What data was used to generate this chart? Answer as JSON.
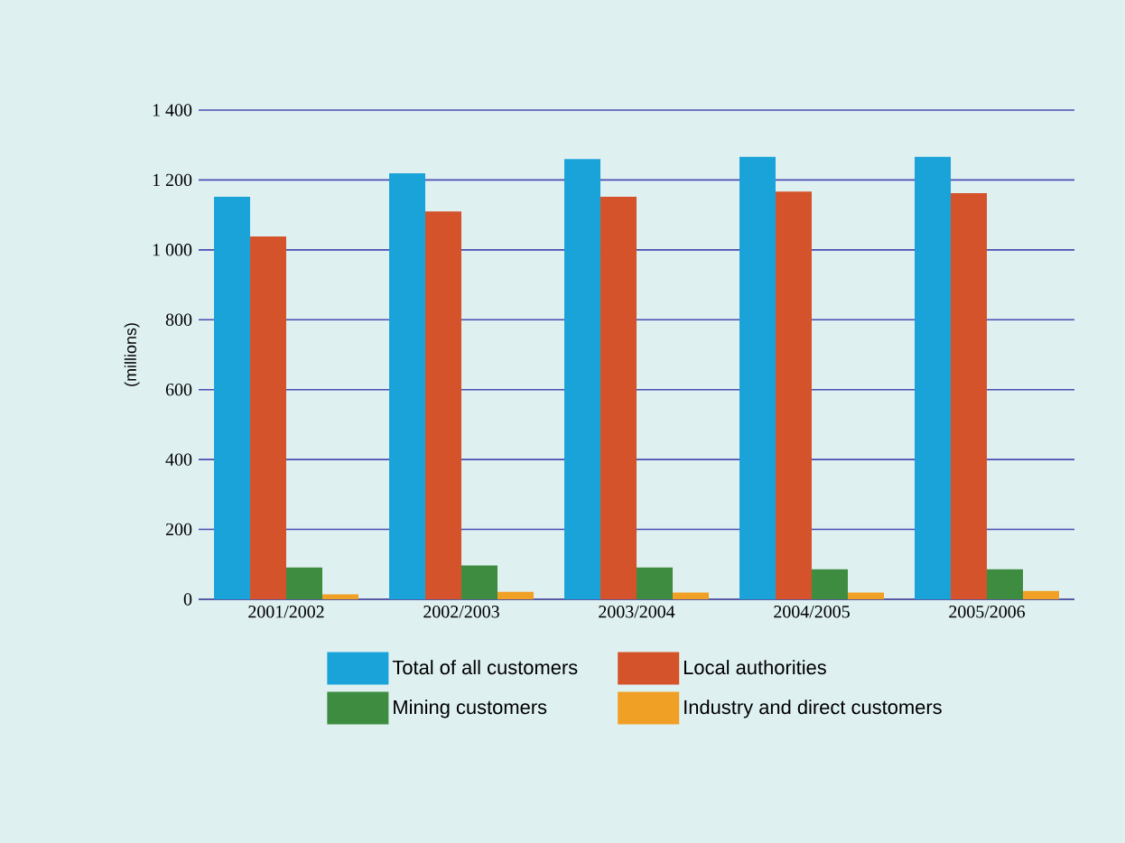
{
  "chart_data": {
    "type": "bar",
    "ylabel": "(millions)",
    "categories": [
      "2001/2002",
      "2002/2003",
      "2003/2004",
      "2004/2005",
      "2005/2006"
    ],
    "series": [
      {
        "name": "Total of all customers",
        "color": "#1aa3d9",
        "values": [
          1152,
          1219,
          1260,
          1266,
          1266
        ]
      },
      {
        "name": "Local authorities",
        "color": "#d4532a",
        "values": [
          1038,
          1110,
          1152,
          1167,
          1162
        ]
      },
      {
        "name": "Mining customers",
        "color": "#3d8c3f",
        "values": [
          91,
          97,
          91,
          86,
          86
        ]
      },
      {
        "name": "Industry and direct customers",
        "color": "#f0a024",
        "values": [
          14,
          21,
          19,
          19,
          24
        ]
      }
    ],
    "ylim": [
      0,
      1400
    ],
    "yticks": [
      0,
      200,
      400,
      600,
      800,
      {
        "value": 1000,
        "label": "1 000"
      },
      {
        "value": 1200,
        "label": "1 200"
      },
      {
        "value": 1400,
        "label": "1 400"
      }
    ],
    "grid": "y",
    "legend": "bottom"
  }
}
